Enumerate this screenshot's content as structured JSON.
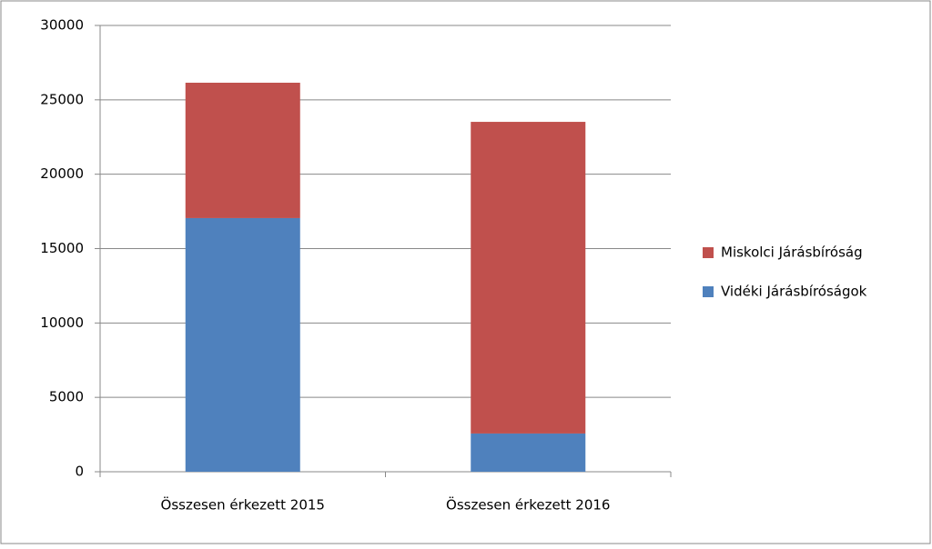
{
  "chart_data": {
    "type": "stacked_bar",
    "categories": [
      "Összesen érkezett 2015",
      "Összesen érkezett 2016"
    ],
    "series": [
      {
        "name": "Vidéki Járásbíróságok",
        "color": "#4f81bd",
        "values": [
          17050,
          2570
        ]
      },
      {
        "name": "Miskolci Járásbíróság",
        "color": "#c0504d",
        "values": [
          9100,
          20950
        ]
      }
    ],
    "ylim": [
      0,
      30000
    ],
    "yticks": [
      0,
      5000,
      10000,
      15000,
      20000,
      25000,
      30000
    ],
    "grid": true,
    "legend": "right"
  }
}
